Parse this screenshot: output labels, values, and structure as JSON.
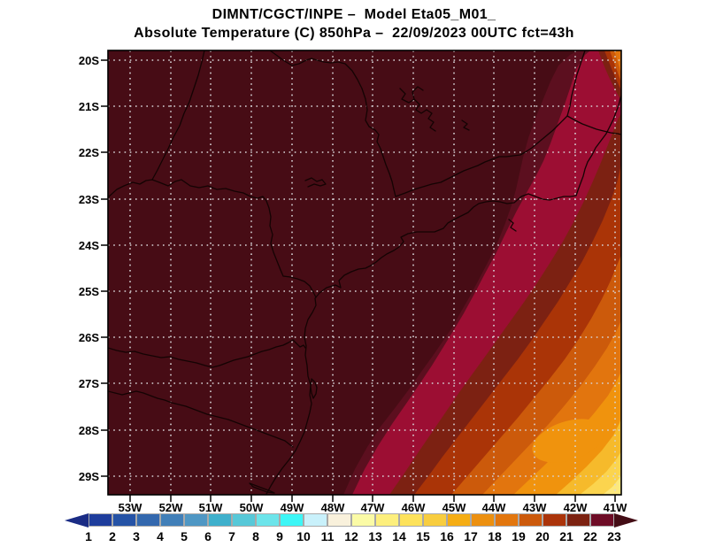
{
  "title": {
    "line1": "DIMNT/CGCT/INPE –  Model Eta05_M01_",
    "line2": "Absolute Temperature (C) 850hPa –  22/09/2023 00UTC fct=43h"
  },
  "axes": {
    "lat_labels": [
      "20S",
      "21S",
      "22S",
      "23S",
      "24S",
      "25S",
      "26S",
      "27S",
      "28S",
      "29S"
    ],
    "lon_labels": [
      "53W",
      "52W",
      "51W",
      "50W",
      "49W",
      "48W",
      "47W",
      "46W",
      "45W",
      "44W",
      "43W",
      "42W",
      "41W"
    ]
  },
  "colorbar": {
    "values": [
      "1",
      "2",
      "3",
      "4",
      "5",
      "6",
      "7",
      "8",
      "9",
      "10",
      "11",
      "12",
      "13",
      "14",
      "15",
      "16",
      "17",
      "18",
      "19",
      "20",
      "21",
      "22",
      "23"
    ],
    "cell_colors": [
      "#1e3d9c",
      "#2553a6",
      "#3368ae",
      "#417fb8",
      "#4f97c4",
      "#3fb0cc",
      "#57c8d8",
      "#6ce4ea",
      "#3df6f6",
      "#c9f1fb",
      "#f9f1dc",
      "#fbfba6",
      "#fdef7d",
      "#fde25b",
      "#f8cd3f",
      "#f5ad14",
      "#ec9010",
      "#e2760e",
      "#cc5a0c",
      "#ab340a",
      "#7c2211",
      "#6e0c26"
    ],
    "left_arrow_color": "#1a2c85",
    "right_arrow_color": "#440d16"
  },
  "map_colors": {
    "darkest": "#470c15",
    "burgundy": "#5c0f1f",
    "crimson": "#9c0e33",
    "dark_brick": "#7c2112",
    "brick": "#aa3407",
    "rust": "#cc5a0b",
    "orange": "#e2750e",
    "light_orange": "#f0930d",
    "gold": "#f6ba2b",
    "yellow": "#fbd44e",
    "pale_yellow": "#fde87c",
    "grid": "#d8d4d8",
    "geo_line": "#140303",
    "frame": "#000000"
  },
  "chart_data": {
    "type": "heatmap",
    "title": "DIMNT/CGCT/INPE – Model Eta05_M01_",
    "subtitle": "Absolute Temperature (C) 850hPa – 22/09/2023 00UTC fct=43h",
    "variable": "Absolute Temperature",
    "units": "C",
    "level": "850hPa",
    "run": "22/09/2023 00UTC",
    "forecast": "fct=43h",
    "lat_ticks": [
      "20S",
      "21S",
      "22S",
      "23S",
      "24S",
      "25S",
      "26S",
      "27S",
      "28S",
      "29S"
    ],
    "lon_ticks": [
      "53W",
      "52W",
      "51W",
      "50W",
      "49W",
      "48W",
      "47W",
      "46W",
      "45W",
      "44W",
      "43W",
      "42W",
      "41W"
    ],
    "colorbar_levels": [
      1,
      2,
      3,
      4,
      5,
      6,
      7,
      8,
      9,
      10,
      11,
      12,
      13,
      14,
      15,
      16,
      17,
      18,
      19,
      20,
      21,
      22,
      23
    ],
    "palette": [
      "#1e3d9c",
      "#2553a6",
      "#3368ae",
      "#417fb8",
      "#4f97c4",
      "#3fb0cc",
      "#57c8d8",
      "#6ce4ea",
      "#3df6f6",
      "#c9f1fb",
      "#f9f1dc",
      "#fbfba6",
      "#fdef7d",
      "#fde25b",
      "#f8cd3f",
      "#f5ad14",
      "#ec9010",
      "#e2760e",
      "#cc5a0c",
      "#ab340a",
      "#7c2211",
      "#6e0c26"
    ],
    "gradient_description": "Most of the land area (NW two-thirds) is above 23 C (darkest maroon). Temperature decreases toward the SE ocean corner in diagonal SW-NE bands: 22-23 burgundy, then crimson, dark brick (21-22), brick (20-21), rust (19-20), orange (18-19), light orange (17-18), gold (16-17), yellow (14-16) down to ~13-14 C pale yellow at the 41W/29.5S corner. A small warm-to-cool ring pattern (orange core ~18-19 C) sits at the NE corner near 41W/20S.",
    "estimated_values_grid": {
      "lons_W": [
        53,
        50,
        47,
        44,
        41
      ],
      "lats_S": [
        20,
        22,
        24,
        26,
        28,
        29.5
      ],
      "values_C": [
        [
          24,
          24,
          24,
          24,
          19
        ],
        [
          24,
          24,
          24,
          23.5,
          22.5
        ],
        [
          24,
          24,
          24,
          22.5,
          20.5
        ],
        [
          24,
          24,
          23,
          20.5,
          18.5
        ],
        [
          24,
          23.5,
          20.5,
          18,
          15.5
        ],
        [
          24,
          22.5,
          19,
          16.5,
          13.5
        ]
      ]
    }
  }
}
